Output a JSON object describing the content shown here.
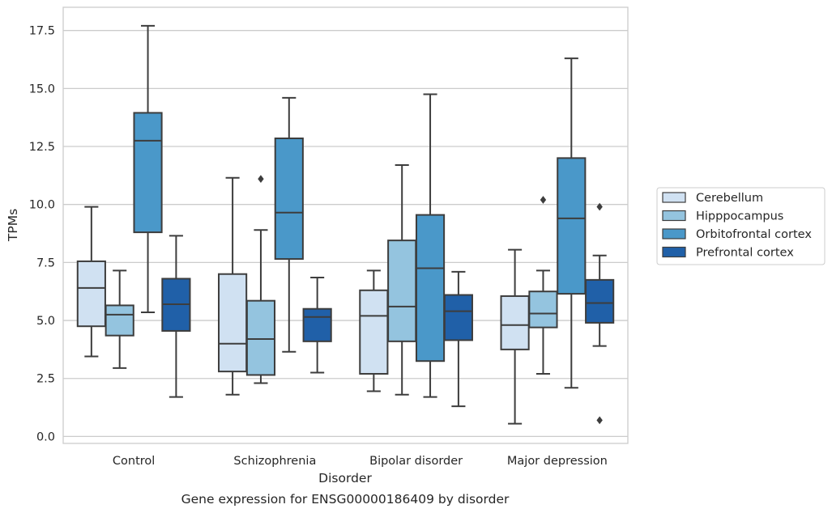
{
  "chart_data": {
    "type": "boxplot",
    "xlabel": "Disorder",
    "ylabel": "TPMs",
    "caption": "Gene expression for ENSG00000186409 by disorder",
    "ylim": [
      -0.3,
      18.5
    ],
    "yticks": [
      "0.0",
      "2.5",
      "5.0",
      "7.5",
      "10.0",
      "12.5",
      "15.0",
      "17.5"
    ],
    "categories": [
      "Control",
      "Schizophrenia",
      "Bipolar disorder",
      "Major depression"
    ],
    "grid": "horizontal",
    "legend_position": "right",
    "series": [
      {
        "name": "Cerebellum",
        "color": "#d0e1f2",
        "boxes": [
          {
            "min": 3.45,
            "q1": 4.75,
            "median": 6.4,
            "q3": 7.55,
            "max": 9.9,
            "outliers": []
          },
          {
            "min": 1.8,
            "q1": 2.8,
            "median": 4.0,
            "q3": 7.0,
            "max": 11.15,
            "outliers": []
          },
          {
            "min": 1.95,
            "q1": 2.7,
            "median": 5.2,
            "q3": 6.3,
            "max": 7.15,
            "outliers": []
          },
          {
            "min": 0.55,
            "q1": 3.75,
            "median": 4.8,
            "q3": 6.05,
            "max": 8.05,
            "outliers": []
          }
        ]
      },
      {
        "name": "Hipppocampus",
        "color": "#94c4df",
        "boxes": [
          {
            "min": 2.95,
            "q1": 4.35,
            "median": 5.25,
            "q3": 5.65,
            "max": 7.15,
            "outliers": []
          },
          {
            "min": 2.3,
            "q1": 2.65,
            "median": 4.2,
            "q3": 5.85,
            "max": 8.9,
            "outliers": [
              11.1
            ]
          },
          {
            "min": 1.8,
            "q1": 4.1,
            "median": 5.6,
            "q3": 8.45,
            "max": 11.7,
            "outliers": []
          },
          {
            "min": 2.7,
            "q1": 4.7,
            "median": 5.3,
            "q3": 6.25,
            "max": 7.15,
            "outliers": [
              10.2
            ]
          }
        ]
      },
      {
        "name": "Orbitofrontal cortex",
        "color": "#4a98c9",
        "boxes": [
          {
            "min": 5.35,
            "q1": 8.8,
            "median": 12.75,
            "q3": 13.95,
            "max": 17.7,
            "outliers": []
          },
          {
            "min": 3.65,
            "q1": 7.65,
            "median": 9.65,
            "q3": 12.85,
            "max": 14.6,
            "outliers": []
          },
          {
            "min": 1.7,
            "q1": 3.25,
            "median": 7.25,
            "q3": 9.55,
            "max": 14.75,
            "outliers": []
          },
          {
            "min": 2.1,
            "q1": 6.15,
            "median": 9.4,
            "q3": 12.0,
            "max": 16.3,
            "outliers": []
          }
        ]
      },
      {
        "name": "Prefrontal cortex",
        "color": "#2060a8",
        "boxes": [
          {
            "min": 1.7,
            "q1": 4.55,
            "median": 5.7,
            "q3": 6.8,
            "max": 8.65,
            "outliers": []
          },
          {
            "min": 2.75,
            "q1": 4.1,
            "median": 5.15,
            "q3": 5.5,
            "max": 6.85,
            "outliers": []
          },
          {
            "min": 1.3,
            "q1": 4.15,
            "median": 5.4,
            "q3": 6.1,
            "max": 7.1,
            "outliers": []
          },
          {
            "min": 3.9,
            "q1": 4.9,
            "median": 5.75,
            "q3": 6.75,
            "max": 7.8,
            "outliers": [
              9.9,
              0.7
            ]
          }
        ]
      }
    ]
  }
}
